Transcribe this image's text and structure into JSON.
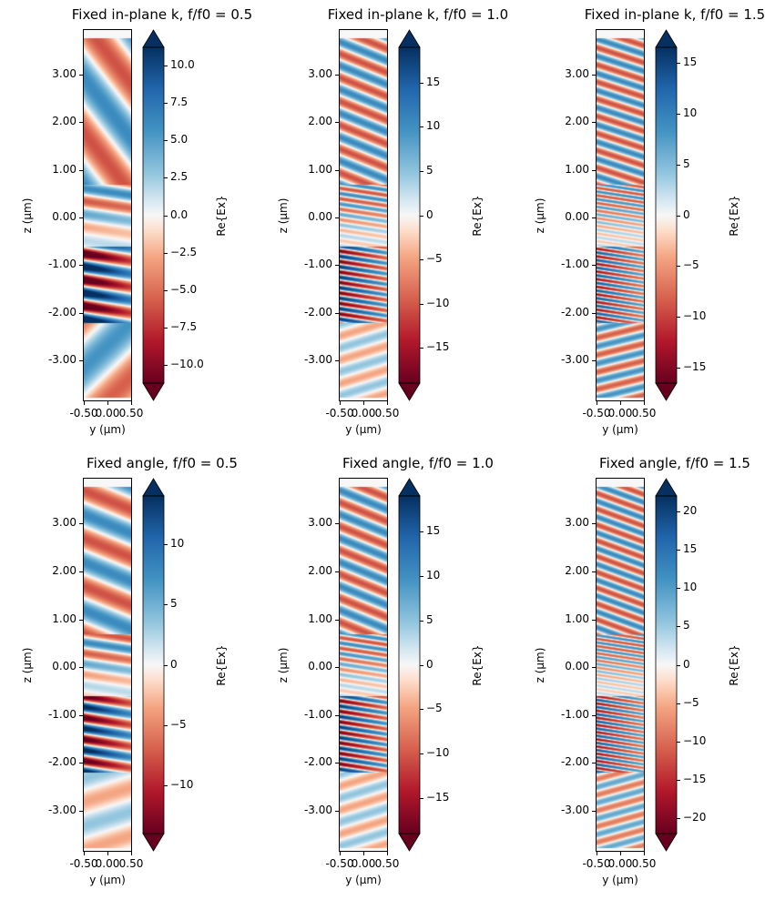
{
  "chart_data": [
    {
      "type": "heatmap",
      "title": "Fixed in-plane k, f/f0 = 0.5",
      "xlabel": "y (µm)",
      "ylabel": "z (µm)",
      "xlim": [
        -0.5,
        0.5
      ],
      "ylim": [
        -3.84,
        3.94
      ],
      "xticks": [
        "-0.50",
        "0.00",
        "0.50"
      ],
      "yticks": [
        3,
        2,
        1,
        0,
        -1,
        -2,
        -3
      ],
      "ytick_labels": [
        "3.00",
        "2.00",
        "1.00",
        "0.00",
        "-1.00",
        "-2.00",
        "-3.00"
      ],
      "colorbar": {
        "label": "Re{Ex}",
        "range": [
          -11.2,
          11.2
        ],
        "ticks": [
          10,
          7.5,
          5,
          2.5,
          0,
          -2.5,
          -5,
          -7.5,
          -10
        ],
        "tick_labels": [
          "10.0",
          "7.5",
          "5.0",
          "2.5",
          "0.0",
          "−2.5",
          "−5.0",
          "−7.5",
          "−10.0"
        ],
        "extend": "both",
        "colormap": "RdBu"
      }
    },
    {
      "type": "heatmap",
      "title": "Fixed in-plane k, f/f0 = 1.0",
      "xlabel": "y (µm)",
      "ylabel": "z (µm)",
      "xlim": [
        -0.5,
        0.5
      ],
      "ylim": [
        -3.84,
        3.94
      ],
      "xticks": [
        "-0.50",
        "0.00",
        "0.50"
      ],
      "yticks": [
        3,
        2,
        1,
        0,
        -1,
        -2,
        -3
      ],
      "ytick_labels": [
        "3.00",
        "2.00",
        "1.00",
        "0.00",
        "-1.00",
        "-2.00",
        "-3.00"
      ],
      "colorbar": {
        "label": "Re{Ex}",
        "range": [
          -19,
          19
        ],
        "ticks": [
          15,
          10,
          5,
          0,
          -5,
          -10,
          -15
        ],
        "tick_labels": [
          "15",
          "10",
          "5",
          "0",
          "−5",
          "−10",
          "−15"
        ],
        "extend": "both",
        "colormap": "RdBu"
      }
    },
    {
      "type": "heatmap",
      "title": "Fixed in-plane k, f/f0 = 1.5",
      "xlabel": "y (µm)",
      "ylabel": "z (µm)",
      "xlim": [
        -0.5,
        0.5
      ],
      "ylim": [
        -3.84,
        3.94
      ],
      "xticks": [
        "-0.50",
        "0.00",
        "0.50"
      ],
      "yticks": [
        3,
        2,
        1,
        0,
        -1,
        -2,
        -3
      ],
      "ytick_labels": [
        "3.00",
        "2.00",
        "1.00",
        "0.00",
        "-1.00",
        "-2.00",
        "-3.00"
      ],
      "colorbar": {
        "label": "Re{Ex}",
        "range": [
          -16.5,
          16.5
        ],
        "ticks": [
          15,
          10,
          5,
          0,
          -5,
          -10,
          -15
        ],
        "tick_labels": [
          "15",
          "10",
          "5",
          "0",
          "−5",
          "−10",
          "−15"
        ],
        "extend": "both",
        "colormap": "RdBu"
      }
    },
    {
      "type": "heatmap",
      "title": "Fixed angle, f/f0 = 0.5",
      "xlabel": "y (µm)",
      "ylabel": "z (µm)",
      "xlim": [
        -0.5,
        0.5
      ],
      "ylim": [
        -3.84,
        3.94
      ],
      "xticks": [
        "-0.50",
        "0.00",
        "0.50"
      ],
      "yticks": [
        3,
        2,
        1,
        0,
        -1,
        -2,
        -3
      ],
      "ytick_labels": [
        "3.00",
        "2.00",
        "1.00",
        "0.00",
        "-1.00",
        "-2.00",
        "-3.00"
      ],
      "colorbar": {
        "label": "Re{Ex}",
        "range": [
          -14,
          14
        ],
        "ticks": [
          10,
          5,
          0,
          -5,
          -10
        ],
        "tick_labels": [
          "10",
          "5",
          "0",
          "−5",
          "−10"
        ],
        "extend": "both",
        "colormap": "RdBu"
      }
    },
    {
      "type": "heatmap",
      "title": "Fixed angle, f/f0 = 1.0",
      "xlabel": "y (µm)",
      "ylabel": "z (µm)",
      "xlim": [
        -0.5,
        0.5
      ],
      "ylim": [
        -3.84,
        3.94
      ],
      "xticks": [
        "-0.50",
        "0.00",
        "0.50"
      ],
      "yticks": [
        3,
        2,
        1,
        0,
        -1,
        -2,
        -3
      ],
      "ytick_labels": [
        "3.00",
        "2.00",
        "1.00",
        "0.00",
        "-1.00",
        "-2.00",
        "-3.00"
      ],
      "colorbar": {
        "label": "Re{Ex}",
        "range": [
          -19,
          19
        ],
        "ticks": [
          15,
          10,
          5,
          0,
          -5,
          -10,
          -15
        ],
        "tick_labels": [
          "15",
          "10",
          "5",
          "0",
          "−5",
          "−10",
          "−15"
        ],
        "extend": "both",
        "colormap": "RdBu"
      }
    },
    {
      "type": "heatmap",
      "title": "Fixed angle, f/f0 = 1.5",
      "xlabel": "y (µm)",
      "ylabel": "z (µm)",
      "xlim": [
        -0.5,
        0.5
      ],
      "ylim": [
        -3.84,
        3.94
      ],
      "xticks": [
        "-0.50",
        "0.00",
        "0.50"
      ],
      "yticks": [
        3,
        2,
        1,
        0,
        -1,
        -2,
        -3
      ],
      "ytick_labels": [
        "3.00",
        "2.00",
        "1.00",
        "0.00",
        "-1.00",
        "-2.00",
        "-3.00"
      ],
      "colorbar": {
        "label": "Re{Ex}",
        "range": [
          -22,
          22
        ],
        "ticks": [
          20,
          15,
          10,
          5,
          0,
          -5,
          -10,
          -15,
          -20
        ],
        "tick_labels": [
          "20",
          "15",
          "10",
          "5",
          "0",
          "−5",
          "−10",
          "−15",
          "−20"
        ],
        "extend": "both",
        "colormap": "RdBu"
      }
    }
  ]
}
